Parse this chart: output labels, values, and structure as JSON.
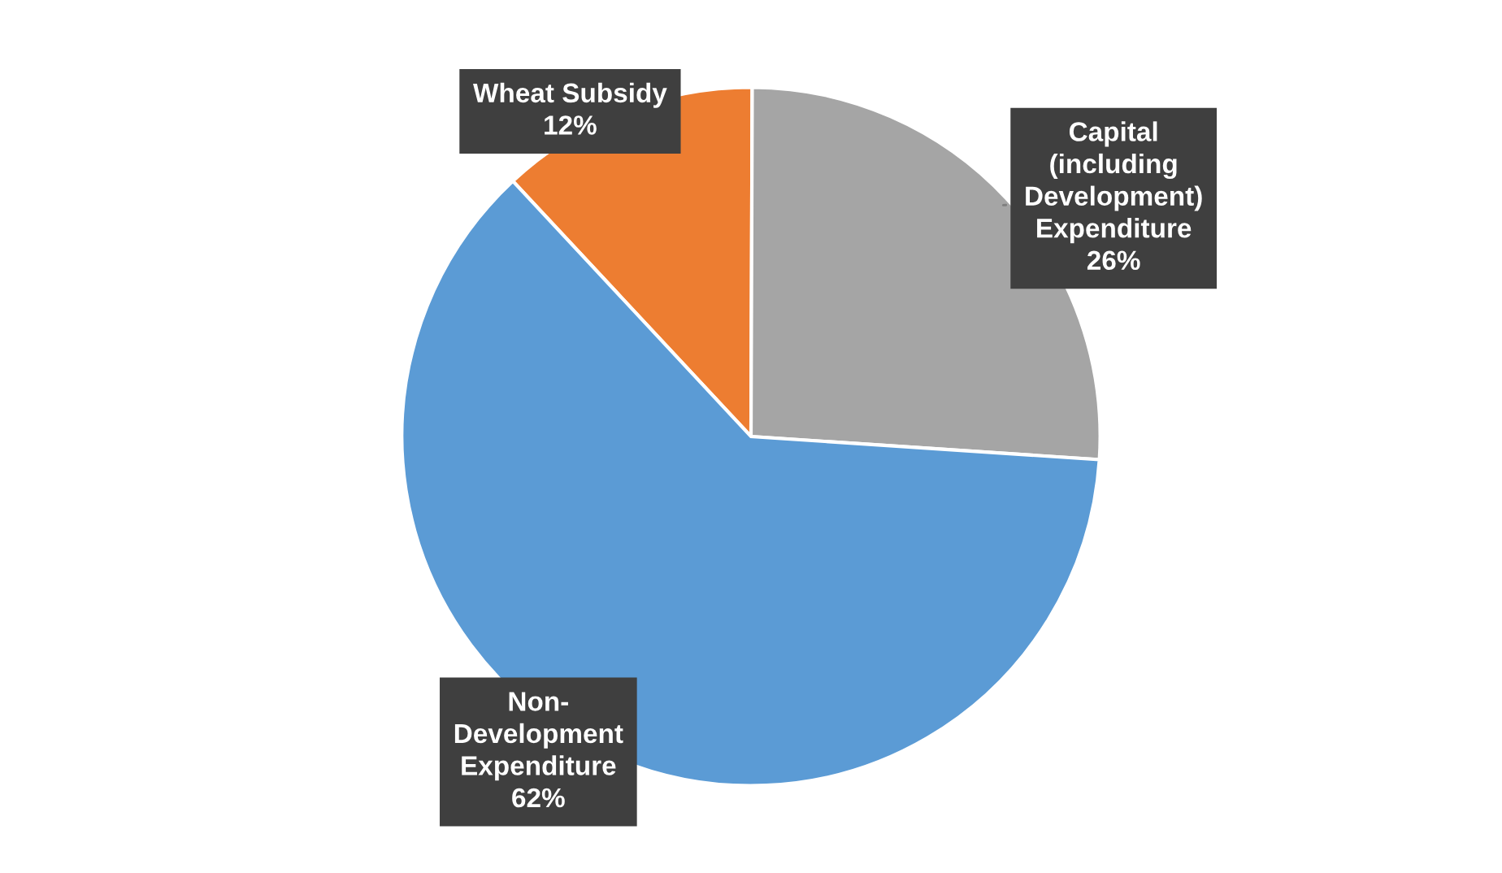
{
  "chart_data": {
    "type": "pie",
    "categories": [
      "Wheat Subsidy",
      "Capital\n(including\nDevelopment)\nExpenditure",
      "Non-\nDevelopment\nExpenditure"
    ],
    "values": [
      12,
      26,
      62
    ],
    "colors": [
      "#ed7d31",
      "#a5a5a5",
      "#5b9bd5"
    ],
    "value_labels": [
      "12%",
      "26%",
      "62%"
    ]
  }
}
